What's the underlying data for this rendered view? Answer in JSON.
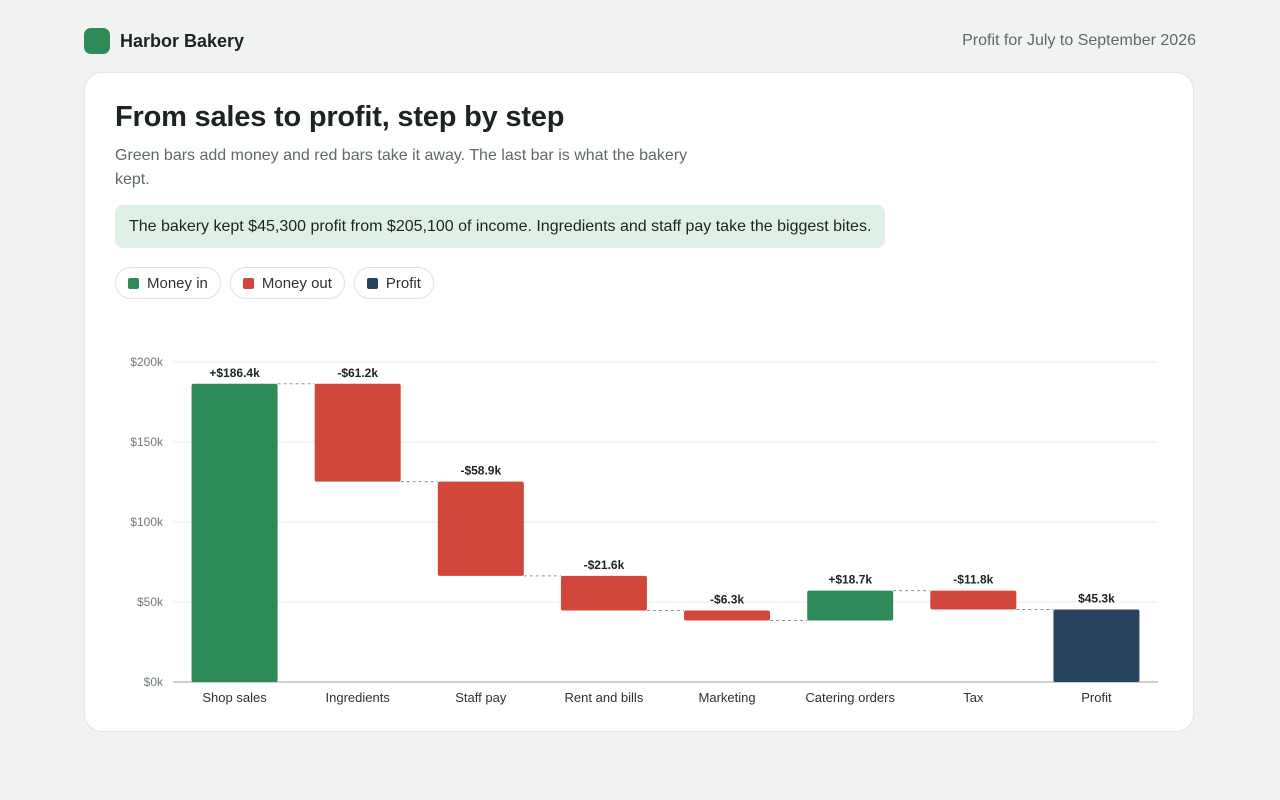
{
  "header": {
    "brand": "Harbor Bakery",
    "period": "Profit for July to September 2026"
  },
  "card": {
    "title": "From sales to profit, step by step",
    "subtitle": "Green bars add money and red bars take it away. The last bar is what the bakery kept.",
    "callout": "The bakery kept $45,300 profit from $205,100 of income. Ingredients and staff pay take the biggest bites."
  },
  "legend": [
    {
      "label": "Money in",
      "color": "#2e8a57"
    },
    {
      "label": "Money out",
      "color": "#d2473c"
    },
    {
      "label": "Profit",
      "color": "#284360"
    }
  ],
  "chart_data": {
    "type": "bar",
    "subtype": "waterfall",
    "y_ticks": [
      "$0k",
      "$50k",
      "$100k",
      "$150k",
      "$200k"
    ],
    "ylim": [
      0,
      200
    ],
    "unit": "thousands of dollars",
    "grid": true,
    "steps": [
      {
        "category": "Shop sales",
        "value": 186.4,
        "kind": "in",
        "label": "+$186.4k"
      },
      {
        "category": "Ingredients",
        "value": -61.2,
        "kind": "out",
        "label": "-$61.2k"
      },
      {
        "category": "Staff pay",
        "value": -58.9,
        "kind": "out",
        "label": "-$58.9k"
      },
      {
        "category": "Rent and bills",
        "value": -21.6,
        "kind": "out",
        "label": "-$21.6k"
      },
      {
        "category": "Marketing",
        "value": -6.3,
        "kind": "out",
        "label": "-$6.3k"
      },
      {
        "category": "Catering orders",
        "value": 18.7,
        "kind": "in",
        "label": "+$18.7k"
      },
      {
        "category": "Tax",
        "value": -11.8,
        "kind": "out",
        "label": "-$11.8k"
      },
      {
        "category": "Profit",
        "value": 45.3,
        "kind": "total",
        "label": "$45.3k"
      }
    ],
    "colors": {
      "in": "#2e8a57",
      "out": "#d2473c",
      "total": "#284360"
    }
  }
}
